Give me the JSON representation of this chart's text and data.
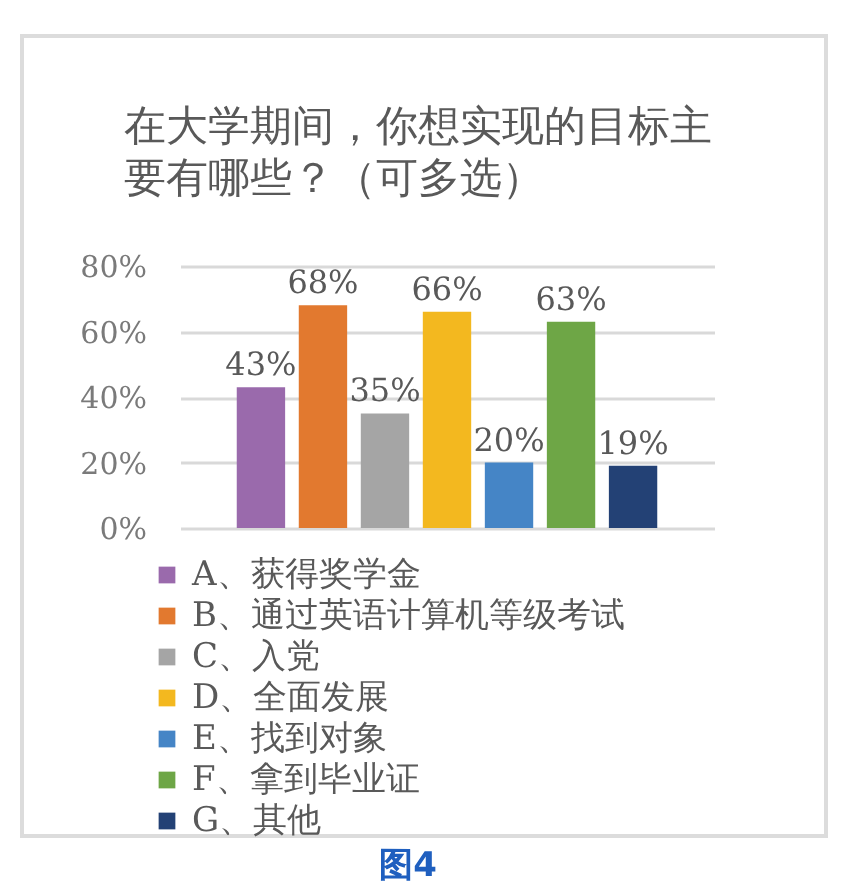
{
  "chart_data": {
    "type": "bar",
    "title": "在大学期间，你想实现的目标主要有哪些？（可多选）",
    "categories": [
      null
    ],
    "series": [
      {
        "name": "A、获得奖学金",
        "color": "#9a6aac",
        "values": [
          43
        ],
        "value_labels": [
          "43%"
        ]
      },
      {
        "name": "B、通过英语计算机等级考试",
        "color": "#e2792f",
        "values": [
          68
        ],
        "value_labels": [
          "68%"
        ]
      },
      {
        "name": "C、入党",
        "color": "#a5a5a5",
        "values": [
          35
        ],
        "value_labels": [
          "35%"
        ]
      },
      {
        "name": "D、全面发展",
        "color": "#f3b81f",
        "values": [
          66
        ],
        "value_labels": [
          "66%"
        ]
      },
      {
        "name": "E、找到对象",
        "color": "#4585c6",
        "values": [
          20
        ],
        "value_labels": [
          "20%"
        ]
      },
      {
        "name": "F、拿到毕业证",
        "color": "#6ea646",
        "values": [
          63
        ],
        "value_labels": [
          "63%"
        ]
      },
      {
        "name": "G、其他",
        "color": "#234175",
        "values": [
          19
        ],
        "value_labels": [
          "19%"
        ]
      }
    ],
    "ylim": [
      0,
      80
    ],
    "yticks": [
      {
        "value": 0,
        "label": "0%"
      },
      {
        "value": 20,
        "label": "20%"
      },
      {
        "value": 40,
        "label": "40%"
      },
      {
        "value": 60,
        "label": "60%"
      },
      {
        "value": 80,
        "label": "80%"
      }
    ],
    "grid": "y",
    "legend": "bottom",
    "tick_labels": "y",
    "annotations": [
      "图4"
    ]
  }
}
